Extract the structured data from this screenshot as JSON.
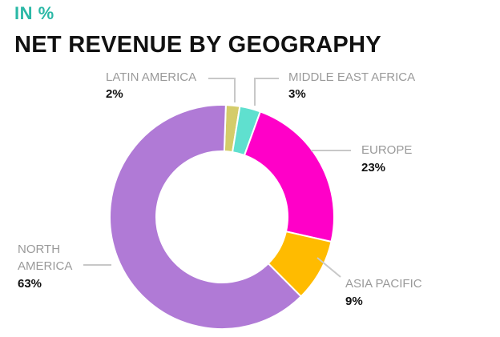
{
  "header": {
    "unit_label": "IN %",
    "title": "NET REVENUE BY GEOGRAPHY"
  },
  "chart_data": {
    "type": "pie",
    "variant": "donut",
    "title": "NET REVENUE BY GEOGRAPHY",
    "unit": "IN %",
    "slices": [
      {
        "label": "LATIN AMERICA",
        "value": 2,
        "display": "2%",
        "color": "#d4cc6a"
      },
      {
        "label": "MIDDLE EAST AFRICA",
        "value": 3,
        "display": "3%",
        "color": "#5fe0cf"
      },
      {
        "label": "EUROPE",
        "value": 23,
        "display": "23%",
        "color": "#ff00c8"
      },
      {
        "label": "ASIA PACIFIC",
        "value": 9,
        "display": "9%",
        "color": "#ffbb00"
      },
      {
        "label": "NORTH AMERICA",
        "value": 63,
        "display": "63%",
        "color": "#b07ad6"
      }
    ],
    "legend": "none"
  }
}
